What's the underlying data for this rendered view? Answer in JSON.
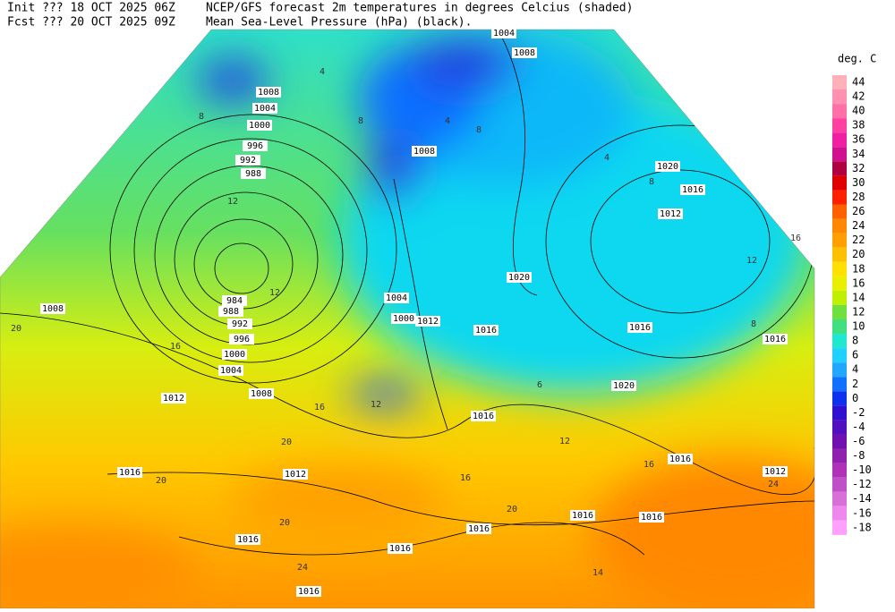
{
  "header": {
    "init": "Init  ??? 18 OCT 2025 06Z",
    "fcst": "Fcst ??? 20 OCT 2025 09Z",
    "title1": "NCEP/GFS forecast 2m temperatures in degrees Celcius (shaded)",
    "title2": "Mean Sea-Level Pressure (hPa) (black)."
  },
  "colorbar": {
    "unit": "deg. C",
    "labels": [
      44,
      42,
      40,
      38,
      36,
      34,
      32,
      30,
      28,
      26,
      24,
      22,
      20,
      18,
      16,
      14,
      12,
      10,
      8,
      6,
      4,
      2,
      0,
      -2,
      -4,
      -6,
      -8,
      -10,
      -12,
      -14,
      -16,
      -18
    ]
  },
  "isobar_labels": [
    1004,
    1008,
    1008,
    1004,
    1000,
    996,
    992,
    988,
    1008,
    1020,
    1016,
    1012,
    1008,
    1004,
    1000,
    1012,
    1020,
    1016,
    1016,
    1016,
    984,
    988,
    992,
    996,
    1000,
    1004,
    1008,
    1012,
    1020,
    1016,
    1016,
    1012,
    1016,
    1012,
    1016,
    1016,
    1016,
    1016,
    1016,
    1016
  ],
  "temp_labels": [
    4,
    8,
    8,
    12,
    16,
    20,
    12,
    4,
    8,
    12,
    16,
    20,
    20,
    20,
    24,
    24,
    16,
    12,
    8,
    4,
    8,
    6,
    16,
    12,
    20,
    16,
    14
  ]
}
